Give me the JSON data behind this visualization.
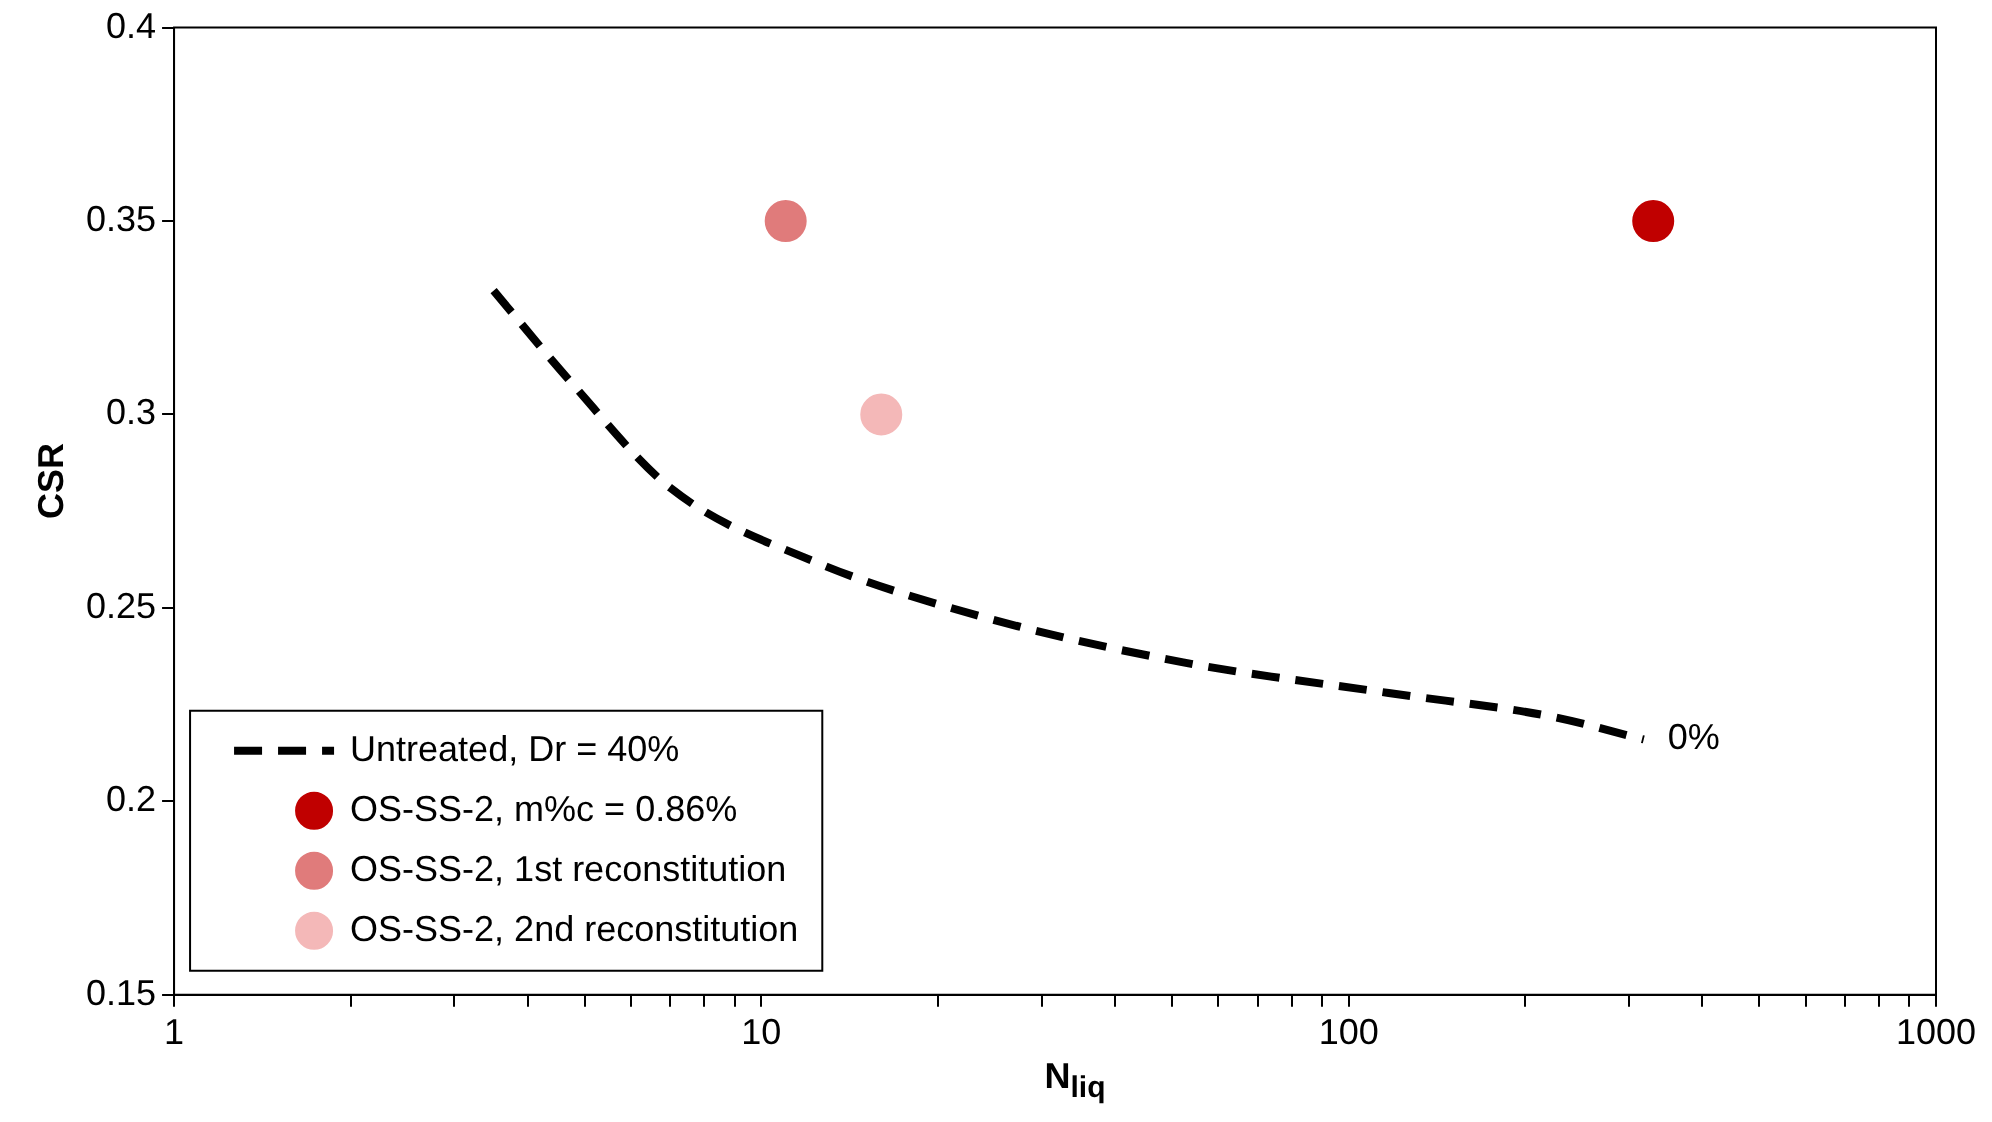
{
  "chart_data": {
    "type": "scatter",
    "xlabel": "N$_{liq}$",
    "ylabel": "CSR",
    "log": "x",
    "xlim": [
      1,
      1000
    ],
    "xticks": [
      1,
      {
        "value": 2,
        "label": null
      },
      {
        "value": 3,
        "label": null
      },
      {
        "value": 4,
        "label": null
      },
      {
        "value": 5,
        "label": null
      },
      {
        "value": 6,
        "label": null
      },
      {
        "value": 7,
        "label": null
      },
      {
        "value": 8,
        "label": null
      },
      {
        "value": 9,
        "label": null
      },
      10,
      {
        "value": 20,
        "label": null
      },
      {
        "value": 30,
        "label": null
      },
      {
        "value": 40,
        "label": null
      },
      {
        "value": 50,
        "label": null
      },
      {
        "value": 60,
        "label": null
      },
      {
        "value": 70,
        "label": null
      },
      {
        "value": 80,
        "label": null
      },
      {
        "value": 90,
        "label": null
      },
      100,
      {
        "value": 200,
        "label": null
      },
      {
        "value": 300,
        "label": null
      },
      {
        "value": 400,
        "label": null
      },
      {
        "value": 500,
        "label": null
      },
      {
        "value": 600,
        "label": null
      },
      {
        "value": 700,
        "label": null
      },
      {
        "value": 800,
        "label": null
      },
      {
        "value": 900,
        "label": null
      },
      1000
    ],
    "ylim": [
      0.15,
      0.4
    ],
    "yticks": [
      0.15,
      0.2,
      0.25,
      0.3,
      0.35,
      0.4
    ],
    "grid": false,
    "legend": "bottom left",
    "marker": "circle",
    "series": [
      {
        "name": "Untreated, Dr = 40%",
        "type": "line",
        "line_style": "dashed",
        "marker": "none",
        "color": "#000000",
        "x": [
          3.5,
          4.7,
          7.0,
          12.3,
          23.4,
          52,
          117,
          220,
          318
        ],
        "values": [
          0.332,
          0.309,
          0.281,
          0.262,
          0.248,
          0.236,
          0.228,
          0.222,
          0.216
        ]
      },
      {
        "name": "OS-SS-2, m%c = 0.86%",
        "color": "#c00000",
        "x": [
          330
        ],
        "values": [
          0.35
        ]
      },
      {
        "name": "OS-SS-2, 1st reconstitution",
        "color": "#e07b7b",
        "x": [
          11
        ],
        "values": [
          0.35
        ]
      },
      {
        "name": "OS-SS-2, 2nd reconstitution",
        "color": "#f4b8b8",
        "x": [
          16
        ],
        "values": [
          0.3
        ]
      }
    ],
    "annotations": [
      "0%"
    ]
  }
}
